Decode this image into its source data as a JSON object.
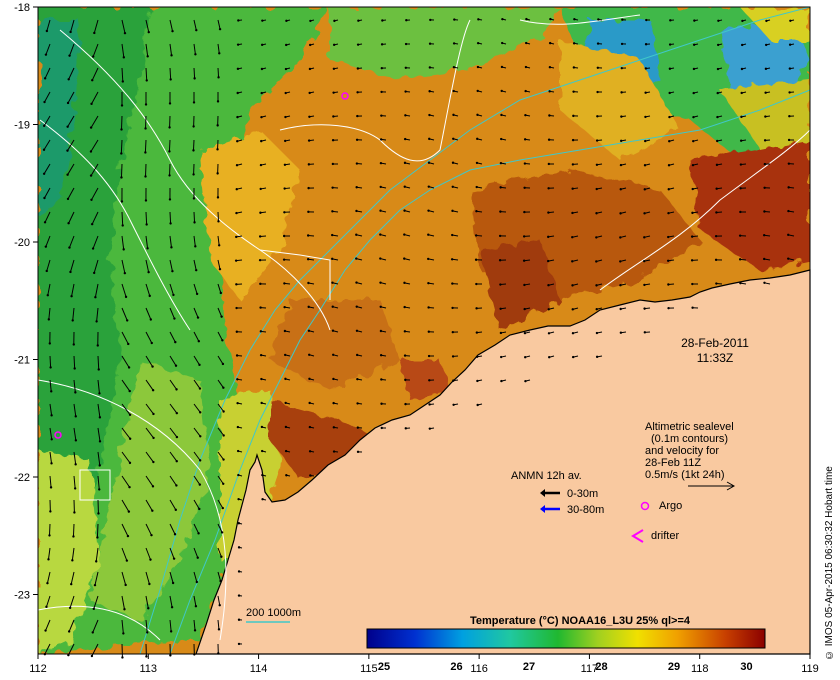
{
  "x_ticks": [
    "112",
    "113",
    "114",
    "115",
    "116",
    "117",
    "118",
    "119"
  ],
  "y_ticks": [
    "-18",
    "-19",
    "-20",
    "-21",
    "-22",
    "-23"
  ],
  "timestamp": {
    "date": "28-Feb-2011",
    "time": "11:33Z"
  },
  "legend_sealevel": [
    "Altimetric sealevel",
    "(0.1m contours)",
    "and velocity for",
    "28-Feb 11Z",
    "0.5m/s (1kt 24h)"
  ],
  "legend_anmn": {
    "title": "ANMN 12h av.",
    "shallow": "0-30m",
    "deep": "30-80m"
  },
  "legend_argo": "Argo",
  "legend_drifter": "drifter",
  "depth_contours": "200  1000m",
  "colorbar": {
    "title": "Temperature (°C) NOAA16_L3U 25% ql>=4",
    "ticks": [
      "25",
      "26",
      "27",
      "28",
      "29",
      "30"
    ]
  },
  "credit": "© IMOS 05-Apr-2015 06:30:32 Hobart time",
  "colors": {
    "land": "#f9c9a0",
    "arrow_shallow": "#000000",
    "arrow_deep": "#0000ff",
    "marker": "#ff00ff",
    "contour": "#ffffff",
    "bathy": "#40c8c8"
  }
}
